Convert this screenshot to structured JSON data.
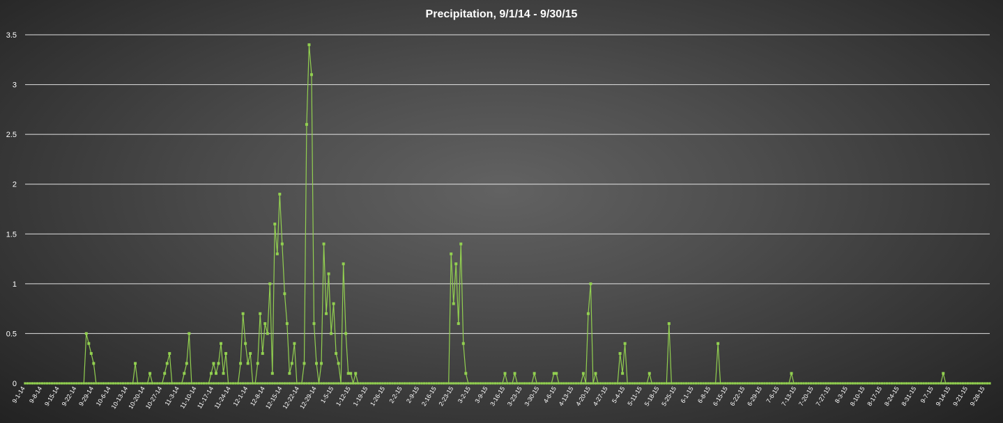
{
  "chart_data": {
    "type": "line",
    "title": "Precipitation, 9/1/14 - 9/30/15",
    "xlabel": "",
    "ylabel": "",
    "ylim": [
      0,
      3.5
    ],
    "yticks": [
      "0",
      "0.5",
      "1",
      "1.5",
      "2",
      "2.5",
      "3",
      "3.5"
    ],
    "grid": true,
    "legend": "none",
    "x_range": [
      "9-1-14",
      "9-30-15"
    ],
    "xtick_labels": [
      "9-1-14",
      "9-8-14",
      "9-15-14",
      "9-22-14",
      "9-29-14",
      "10-6-14",
      "10-13-14",
      "10-20-14",
      "10-27-14",
      "11-3-14",
      "11-10-14",
      "11-17-14",
      "11-24-14",
      "12-1-14",
      "12-8-14",
      "12-15-14",
      "12-22-14",
      "12-29-14",
      "1-5-15",
      "1-12-15",
      "1-19-15",
      "1-26-15",
      "2-2-15",
      "2-9-15",
      "2-16-15",
      "2-23-15",
      "3-2-15",
      "3-9-15",
      "3-16-15",
      "3-23-15",
      "3-30-15",
      "4-6-15",
      "4-13-15",
      "4-20-15",
      "4-27-15",
      "5-4-15",
      "5-11-15",
      "5-18-15",
      "5-25-15",
      "6-1-15",
      "6-8-15",
      "6-15-15",
      "6-22-15",
      "6-29-15",
      "7-6-15",
      "7-13-15",
      "7-20-15",
      "7-27-15",
      "8-3-15",
      "8-10-15",
      "8-17-15",
      "8-24-15",
      "8-31-15",
      "9-7-15",
      "9-14-15",
      "9-21-15",
      "9-28-15"
    ],
    "series": [
      {
        "name": "",
        "color": "#92d050",
        "points": [
          [
            "9-1-14",
            0
          ],
          [
            "9-25-14",
            0
          ],
          [
            "9-26-14",
            0.5
          ],
          [
            "9-27-14",
            0.4
          ],
          [
            "9-28-14",
            0.3
          ],
          [
            "9-29-14",
            0.2
          ],
          [
            "9-30-14",
            0
          ],
          [
            "10-15-14",
            0
          ],
          [
            "10-16-14",
            0.2
          ],
          [
            "10-17-14",
            0
          ],
          [
            "10-21-14",
            0
          ],
          [
            "10-22-14",
            0.1
          ],
          [
            "10-23-14",
            0
          ],
          [
            "10-27-14",
            0
          ],
          [
            "10-28-14",
            0.1
          ],
          [
            "10-29-14",
            0.2
          ],
          [
            "10-30-14",
            0.3
          ],
          [
            "10-31-14",
            0
          ],
          [
            "11-4-14",
            0
          ],
          [
            "11-5-14",
            0.1
          ],
          [
            "11-6-14",
            0.2
          ],
          [
            "11-7-14",
            0.5
          ],
          [
            "11-8-14",
            0
          ],
          [
            "11-15-14",
            0
          ],
          [
            "11-16-14",
            0.1
          ],
          [
            "11-17-14",
            0.2
          ],
          [
            "11-18-14",
            0.1
          ],
          [
            "11-19-14",
            0.2
          ],
          [
            "11-20-14",
            0.4
          ],
          [
            "11-21-14",
            0.1
          ],
          [
            "11-22-14",
            0.3
          ],
          [
            "11-23-14",
            0
          ],
          [
            "11-27-14",
            0
          ],
          [
            "11-28-14",
            0.2
          ],
          [
            "11-29-14",
            0.7
          ],
          [
            "11-30-14",
            0.4
          ],
          [
            "12-1-14",
            0.2
          ],
          [
            "12-2-14",
            0.3
          ],
          [
            "12-3-14",
            0
          ],
          [
            "12-4-14",
            0
          ],
          [
            "12-5-14",
            0.2
          ],
          [
            "12-6-14",
            0.7
          ],
          [
            "12-7-14",
            0.3
          ],
          [
            "12-8-14",
            0.6
          ],
          [
            "12-9-14",
            0.5
          ],
          [
            "12-10-14",
            1.0
          ],
          [
            "12-11-14",
            0.1
          ],
          [
            "12-12-14",
            1.6
          ],
          [
            "12-13-14",
            1.3
          ],
          [
            "12-14-14",
            1.9
          ],
          [
            "12-15-14",
            1.4
          ],
          [
            "12-16-14",
            0.9
          ],
          [
            "12-17-14",
            0.6
          ],
          [
            "12-18-14",
            0.1
          ],
          [
            "12-19-14",
            0.2
          ],
          [
            "12-20-14",
            0.4
          ],
          [
            "12-21-14",
            0
          ],
          [
            "12-23-14",
            0
          ],
          [
            "12-24-14",
            0.2
          ],
          [
            "12-25-14",
            2.6
          ],
          [
            "12-26-14",
            3.4
          ],
          [
            "12-27-14",
            3.1
          ],
          [
            "12-28-14",
            0.6
          ],
          [
            "12-29-14",
            0.2
          ],
          [
            "12-30-14",
            0
          ],
          [
            "12-31-14",
            0.2
          ],
          [
            "1-1-15",
            1.4
          ],
          [
            "1-2-15",
            0.7
          ],
          [
            "1-3-15",
            1.1
          ],
          [
            "1-4-15",
            0.5
          ],
          [
            "1-5-15",
            0.8
          ],
          [
            "1-6-15",
            0.3
          ],
          [
            "1-7-15",
            0.2
          ],
          [
            "1-8-15",
            0
          ],
          [
            "1-9-15",
            1.2
          ],
          [
            "1-10-15",
            0.5
          ],
          [
            "1-11-15",
            0.1
          ],
          [
            "1-12-15",
            0.1
          ],
          [
            "1-13-15",
            0
          ],
          [
            "1-14-15",
            0.1
          ],
          [
            "1-15-15",
            0
          ],
          [
            "2-21-15",
            0
          ],
          [
            "2-22-15",
            1.3
          ],
          [
            "2-23-15",
            0.8
          ],
          [
            "2-24-15",
            1.2
          ],
          [
            "2-25-15",
            0.6
          ],
          [
            "2-26-15",
            1.4
          ],
          [
            "2-27-15",
            0.4
          ],
          [
            "2-28-15",
            0.1
          ],
          [
            "3-1-15",
            0
          ],
          [
            "3-15-15",
            0
          ],
          [
            "3-16-15",
            0.1
          ],
          [
            "3-17-15",
            0
          ],
          [
            "3-19-15",
            0
          ],
          [
            "3-20-15",
            0.1
          ],
          [
            "3-21-15",
            0
          ],
          [
            "3-27-15",
            0
          ],
          [
            "3-28-15",
            0.1
          ],
          [
            "3-29-15",
            0
          ],
          [
            "4-4-15",
            0
          ],
          [
            "4-5-15",
            0.1
          ],
          [
            "4-6-15",
            0.1
          ],
          [
            "4-7-15",
            0
          ],
          [
            "4-16-15",
            0
          ],
          [
            "4-17-15",
            0.1
          ],
          [
            "4-18-15",
            0
          ],
          [
            "4-19-15",
            0.7
          ],
          [
            "4-20-15",
            1.0
          ],
          [
            "4-21-15",
            0
          ],
          [
            "4-22-15",
            0.1
          ],
          [
            "4-23-15",
            0
          ],
          [
            "5-1-15",
            0
          ],
          [
            "5-2-15",
            0.3
          ],
          [
            "5-3-15",
            0.1
          ],
          [
            "5-4-15",
            0.4
          ],
          [
            "5-5-15",
            0
          ],
          [
            "5-13-15",
            0
          ],
          [
            "5-14-15",
            0.1
          ],
          [
            "5-15-15",
            0
          ],
          [
            "5-21-15",
            0
          ],
          [
            "5-22-15",
            0.6
          ],
          [
            "5-23-15",
            0
          ],
          [
            "6-10-15",
            0
          ],
          [
            "6-11-15",
            0.4
          ],
          [
            "6-12-15",
            0
          ],
          [
            "7-10-15",
            0
          ],
          [
            "7-11-15",
            0.1
          ],
          [
            "7-12-15",
            0
          ],
          [
            "9-10-15",
            0
          ],
          [
            "9-11-15",
            0.1
          ],
          [
            "9-12-15",
            0
          ],
          [
            "9-30-15",
            0
          ]
        ]
      }
    ]
  }
}
